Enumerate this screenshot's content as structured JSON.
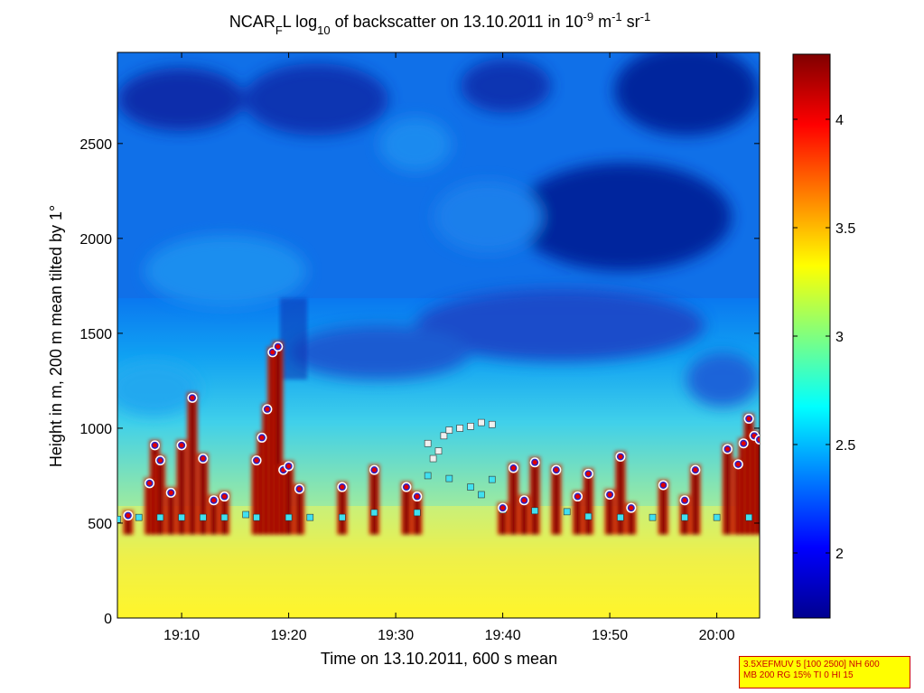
{
  "chart_data": {
    "type": "heatmap",
    "title": {
      "prefix": "NCAR",
      "prefix_sub": "F",
      "mid": "L log",
      "mid_sub": "10",
      "main": " of backscatter on 13.10.2011 in 10",
      "exp1": "-9",
      "unit": " m",
      "exp2": "-1",
      "unit2": " sr",
      "exp3": "-1"
    },
    "xlabel": "Time on 13.10.2011, 600 s mean",
    "ylabel": "Height in m, 200 m mean tilted by 1°",
    "xlim": [
      "19:04",
      "20:04"
    ],
    "ylim": [
      0,
      2980
    ],
    "x_ticks": [
      "19:10",
      "19:20",
      "19:30",
      "19:40",
      "19:50",
      "20:00"
    ],
    "y_ticks": [
      0,
      500,
      1000,
      1500,
      2000,
      2500
    ],
    "colorbar": {
      "colormap": "jet",
      "range": [
        1.7,
        4.3
      ],
      "ticks": [
        2,
        2.5,
        3,
        3.5,
        4
      ],
      "tick_labels": [
        "2",
        "2.5",
        "3",
        "3.5",
        "4"
      ]
    },
    "series": [
      {
        "marker": "cyan squares",
        "color": "#40e0f0",
        "points": [
          [
            "19:04",
            520
          ],
          [
            "19:06",
            530
          ],
          [
            "19:08",
            530
          ],
          [
            "19:10",
            530
          ],
          [
            "19:12",
            530
          ],
          [
            "19:14",
            530
          ],
          [
            "19:16",
            545
          ],
          [
            "19:17",
            530
          ],
          [
            "19:20",
            530
          ],
          [
            "19:22",
            530
          ],
          [
            "19:25",
            530
          ],
          [
            "19:28",
            555
          ],
          [
            "19:32",
            555
          ],
          [
            "19:33",
            750
          ],
          [
            "19:35",
            735
          ],
          [
            "19:37",
            690
          ],
          [
            "19:38",
            650
          ],
          [
            "19:39",
            730
          ],
          [
            "19:40",
            570
          ],
          [
            "19:43",
            565
          ],
          [
            "19:46",
            560
          ],
          [
            "19:48",
            535
          ],
          [
            "19:51",
            530
          ],
          [
            "19:54",
            530
          ],
          [
            "19:57",
            530
          ],
          [
            "20:00",
            530
          ],
          [
            "20:03",
            530
          ]
        ]
      },
      {
        "marker": "white squares",
        "color": "#f0f0f0",
        "points": [
          [
            "19:33",
            920
          ],
          [
            "19:33.5",
            840
          ],
          [
            "19:34",
            880
          ],
          [
            "19:34.5",
            960
          ],
          [
            "19:35",
            990
          ],
          [
            "19:36",
            1000
          ],
          [
            "19:37",
            1010
          ],
          [
            "19:38",
            1030
          ],
          [
            "19:39",
            1020
          ]
        ]
      },
      {
        "marker": "red dots",
        "color": "#e00000",
        "points": [
          [
            "19:05",
            540
          ],
          [
            "19:07",
            710
          ],
          [
            "19:07.5",
            910
          ],
          [
            "19:08",
            830
          ],
          [
            "19:09",
            660
          ],
          [
            "19:10",
            910
          ],
          [
            "19:11",
            1160
          ],
          [
            "19:12",
            840
          ],
          [
            "19:13",
            620
          ],
          [
            "19:14",
            640
          ],
          [
            "19:17",
            830
          ],
          [
            "19:17.5",
            950
          ],
          [
            "19:18",
            1100
          ],
          [
            "19:18.5",
            1400
          ],
          [
            "19:19",
            1430
          ],
          [
            "19:19.5",
            780
          ],
          [
            "19:20",
            800
          ],
          [
            "19:21",
            680
          ],
          [
            "19:25",
            690
          ],
          [
            "19:28",
            780
          ],
          [
            "19:31",
            690
          ],
          [
            "19:32",
            640
          ],
          [
            "19:40",
            580
          ],
          [
            "19:41",
            790
          ],
          [
            "19:42",
            620
          ],
          [
            "19:43",
            820
          ],
          [
            "19:45",
            780
          ],
          [
            "19:47",
            640
          ],
          [
            "19:48",
            760
          ],
          [
            "19:50",
            650
          ],
          [
            "19:51",
            850
          ],
          [
            "19:52",
            580
          ],
          [
            "19:55",
            700
          ],
          [
            "19:57",
            620
          ],
          [
            "19:58",
            780
          ],
          [
            "20:01",
            890
          ],
          [
            "20:02",
            810
          ],
          [
            "20:02.5",
            920
          ],
          [
            "20:03",
            1050
          ],
          [
            "20:03.5",
            960
          ],
          [
            "20:04",
            940
          ]
        ]
      }
    ]
  },
  "info_box": {
    "line1": "3.5XEFMUV 5 [100 2500] NH 600",
    "line2": "MB 200 RG 15% TI 0 HI 15",
    "border_color": "#cc0000",
    "background": "#ffff00"
  }
}
